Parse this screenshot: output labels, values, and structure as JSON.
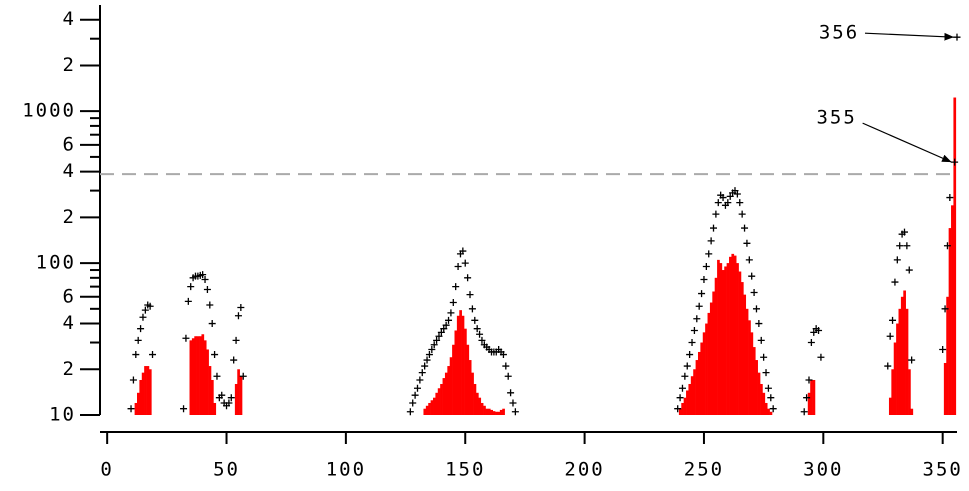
{
  "chart_data": {
    "type": "bar",
    "yscale": "log",
    "xlim": [
      -3,
      356
    ],
    "ylim": [
      10,
      5000
    ],
    "xticks": [
      0,
      50,
      100,
      150,
      200,
      250,
      300,
      350
    ],
    "yticks": [
      10,
      {
        "value": 20,
        "label": "2"
      },
      {
        "value": 40,
        "label": "4"
      },
      {
        "value": 60,
        "label": "6"
      },
      100,
      {
        "value": 200,
        "label": "2"
      },
      {
        "value": 400,
        "label": "4"
      },
      {
        "value": 600,
        "label": "6"
      },
      1000,
      {
        "value": 2000,
        "label": "2"
      },
      {
        "value": 4000,
        "label": "4"
      }
    ],
    "yminorticks": [
      30,
      50,
      70,
      80,
      90,
      300,
      500,
      700,
      800,
      900,
      3000
    ],
    "reference_line": {
      "value": 385,
      "color": "#aaaaaa"
    },
    "series": [
      {
        "type": "bar",
        "color": "#ff0000",
        "x": [
          12,
          13,
          14,
          15,
          16,
          17,
          18,
          35,
          36,
          37,
          38,
          39,
          40,
          41,
          42,
          43,
          44,
          45,
          54,
          55,
          56,
          133,
          134,
          135,
          136,
          137,
          138,
          139,
          140,
          141,
          142,
          143,
          144,
          145,
          146,
          147,
          148,
          149,
          150,
          151,
          152,
          153,
          154,
          155,
          156,
          157,
          158,
          159,
          160,
          161,
          162,
          163,
          164,
          165,
          166,
          240,
          241,
          242,
          243,
          244,
          245,
          246,
          247,
          248,
          249,
          250,
          251,
          252,
          253,
          254,
          255,
          256,
          257,
          258,
          259,
          260,
          261,
          262,
          263,
          264,
          265,
          266,
          267,
          268,
          269,
          270,
          271,
          272,
          273,
          274,
          275,
          276,
          277,
          278,
          294,
          295,
          296,
          328,
          329,
          330,
          331,
          332,
          333,
          334,
          335,
          336,
          337,
          351,
          352,
          353,
          354,
          355
        ],
        "values": [
          12,
          14,
          17,
          19,
          21,
          21,
          20,
          31,
          32,
          33,
          33,
          33,
          34,
          31,
          27,
          21,
          17,
          12,
          16,
          20,
          18,
          11,
          11.5,
          12,
          12.5,
          13,
          14,
          15,
          16,
          17.5,
          19,
          21,
          24,
          29,
          36,
          45,
          49,
          45,
          37,
          29,
          23,
          19,
          16,
          14,
          13,
          12,
          11.5,
          11,
          11,
          10.8,
          10.6,
          10.5,
          10.5,
          10.8,
          11,
          11,
          12,
          13,
          14.5,
          16,
          18,
          20,
          23,
          26,
          30,
          35,
          40,
          47,
          55,
          65,
          80,
          105,
          100,
          90,
          95,
          100,
          110,
          115,
          112,
          100,
          88,
          75,
          62,
          50,
          42,
          35,
          28,
          23,
          19,
          16,
          14,
          12,
          11,
          10.5,
          14,
          17,
          17,
          13,
          20,
          30,
          40,
          50,
          60,
          66,
          50,
          20,
          11,
          22,
          60,
          170,
          240,
          1230
        ]
      },
      {
        "type": "marker",
        "color": "#000000",
        "x": [
          10,
          11,
          12,
          13,
          14,
          15,
          16,
          17,
          18,
          19,
          32,
          33,
          34,
          35,
          36,
          37,
          38,
          39,
          40,
          41,
          42,
          43,
          44,
          45,
          46,
          47,
          48,
          49,
          50,
          51,
          52,
          53,
          54,
          55,
          56,
          57,
          127,
          128,
          129,
          130,
          131,
          132,
          133,
          134,
          135,
          136,
          137,
          138,
          139,
          140,
          141,
          142,
          143,
          144,
          145,
          146,
          147,
          148,
          149,
          150,
          151,
          152,
          153,
          154,
          155,
          156,
          157,
          158,
          159,
          160,
          161,
          162,
          163,
          164,
          165,
          166,
          167,
          168,
          169,
          170,
          171,
          239,
          240,
          241,
          242,
          243,
          244,
          245,
          246,
          247,
          248,
          249,
          250,
          251,
          252,
          253,
          254,
          255,
          256,
          257,
          258,
          259,
          260,
          261,
          262,
          263,
          264,
          265,
          266,
          267,
          268,
          269,
          270,
          271,
          272,
          273,
          274,
          275,
          276,
          277,
          278,
          279,
          292,
          293,
          294,
          295,
          296,
          297,
          298,
          299,
          327,
          328,
          329,
          330,
          331,
          332,
          333,
          334,
          335,
          336,
          337,
          350,
          351,
          352,
          353,
          355,
          356
        ],
        "values": [
          11,
          17,
          25,
          31,
          37,
          44,
          49,
          53,
          52,
          25,
          11,
          32,
          56,
          70,
          80,
          82,
          82,
          83,
          84,
          78,
          67,
          53,
          40,
          25,
          18,
          13,
          13.5,
          12,
          11.5,
          12,
          13,
          23,
          31,
          45,
          51,
          18,
          10.5,
          12,
          13.5,
          15,
          17,
          19,
          21,
          23,
          25,
          27,
          29,
          31,
          33,
          35,
          37,
          39,
          42,
          47,
          55,
          70,
          95,
          115,
          120,
          100,
          80,
          62,
          50,
          42,
          37,
          34,
          31,
          29,
          28,
          27,
          26,
          26,
          26,
          27,
          26,
          25,
          21,
          18,
          14,
          12,
          10.5,
          11,
          13,
          15,
          18,
          21,
          25,
          30,
          36,
          43,
          52,
          63,
          78,
          95,
          115,
          140,
          170,
          210,
          250,
          280,
          270,
          240,
          250,
          275,
          290,
          300,
          285,
          250,
          210,
          170,
          135,
          105,
          82,
          64,
          50,
          40,
          31,
          24,
          19,
          15,
          13,
          11,
          10.5,
          13,
          17,
          30,
          35,
          37,
          36,
          24,
          21,
          33,
          42,
          75,
          105,
          130,
          155,
          160,
          130,
          90,
          23,
          27,
          50,
          130,
          270,
          462,
          3070
        ]
      }
    ],
    "annotations": [
      {
        "text": "356",
        "x": 356,
        "y": 3070
      },
      {
        "text": "355",
        "x": 355,
        "y": 462
      }
    ]
  }
}
